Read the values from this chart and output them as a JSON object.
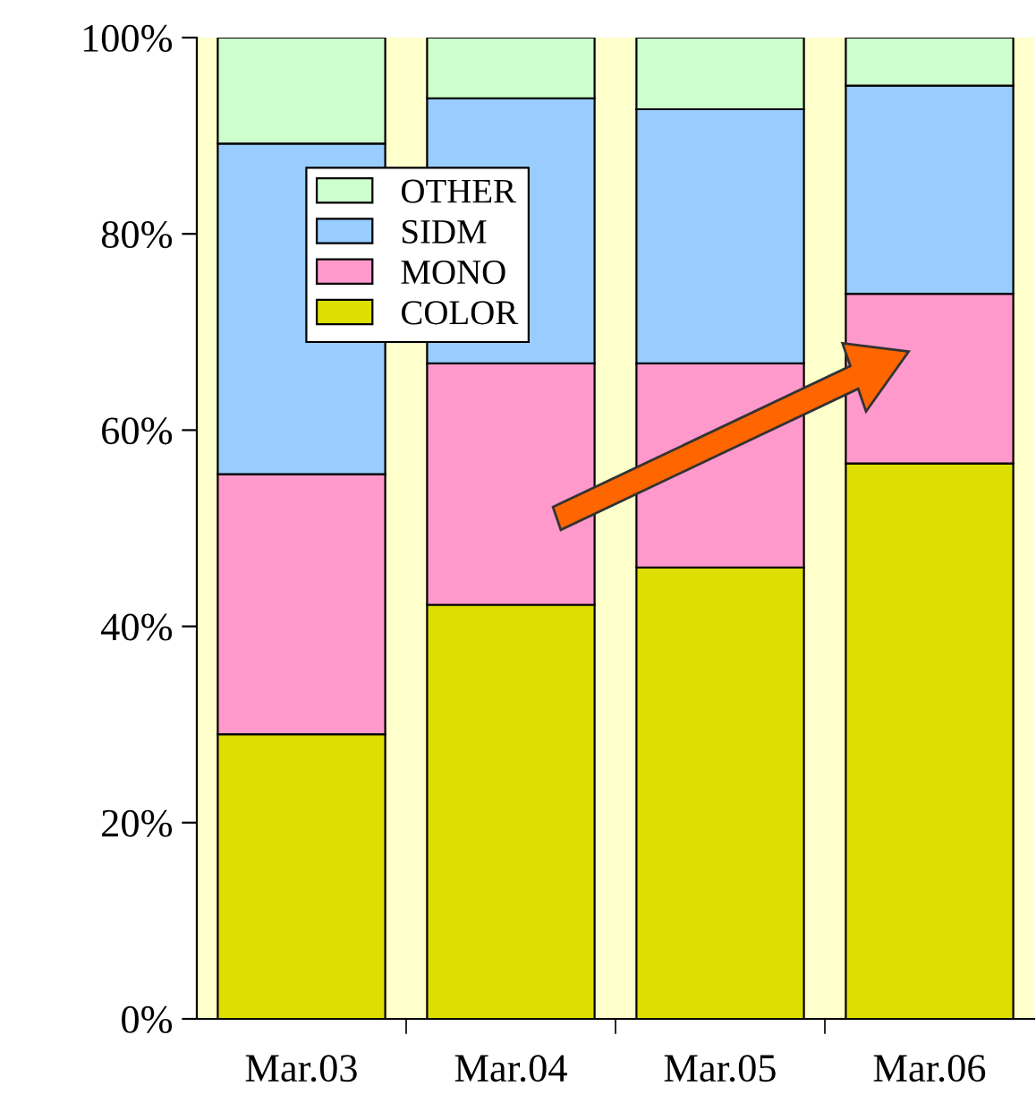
{
  "chart_data": {
    "type": "bar",
    "stacked": true,
    "categories": [
      "Mar.03",
      "Mar.04",
      "Mar.05",
      "Mar.06"
    ],
    "series": [
      {
        "name": "COLOR",
        "color": "#dede00",
        "values": [
          29.0,
          42.2,
          46.0,
          56.6
        ]
      },
      {
        "name": "MONO",
        "color": "#ff99cc",
        "values": [
          26.5,
          24.6,
          20.8,
          17.3
        ]
      },
      {
        "name": "SIDM",
        "color": "#99ccff",
        "values": [
          33.7,
          27.0,
          25.9,
          21.2
        ]
      },
      {
        "name": "OTHER",
        "color": "#ccffcc",
        "values": [
          10.8,
          6.2,
          7.3,
          4.9
        ]
      }
    ],
    "ylim": [
      0,
      100
    ],
    "yticks": [
      {
        "value": 0,
        "label": "0%"
      },
      {
        "value": 20,
        "label": "20%"
      },
      {
        "value": 40,
        "label": "40%"
      },
      {
        "value": 60,
        "label": "60%"
      },
      {
        "value": 80,
        "label": "80%"
      },
      {
        "value": 100,
        "label": "100%"
      }
    ],
    "bands": [
      {
        "axis": "y",
        "from": 0,
        "to": 100,
        "color": "#ffffcc"
      }
    ],
    "grid": false,
    "legend": "top left"
  }
}
